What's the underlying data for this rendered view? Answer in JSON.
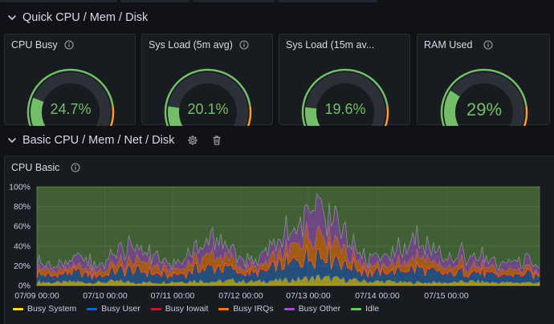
{
  "dashboard": {
    "rows": [
      {
        "title": "Quick CPU / Mem / Disk"
      },
      {
        "title": "Basic CPU / Mem / Net / Disk"
      }
    ],
    "gauges": [
      {
        "title": "CPU Busy",
        "value_text": "24.7%",
        "value": 24.7
      },
      {
        "title": "Sys Load (5m avg)",
        "value_text": "20.1%",
        "value": 20.1
      },
      {
        "title": "Sys Load (15m av...",
        "value_text": "19.6%",
        "value": 19.6
      },
      {
        "title": "RAM Used",
        "value_text": "29%",
        "value": 29
      }
    ],
    "icons": {
      "row_collapse": "chevron-down-icon",
      "info": "info-icon",
      "settings": "gear-icon",
      "delete": "trash-icon"
    },
    "colors": {
      "background": "#111217",
      "panel": "#181b1f",
      "gauge_green": "#73bf69",
      "threshold_orange": "#ff9830",
      "threshold_red": "#f2495c"
    }
  },
  "cpu_panel": {
    "title": "CPU Basic"
  },
  "chart_data": {
    "type": "area",
    "stacked": true,
    "ylim": [
      0,
      100
    ],
    "yticks": [
      "0%",
      "20%",
      "40%",
      "60%",
      "80%",
      "100%"
    ],
    "xticks": [
      "07/09 00:00",
      "07/10 00:00",
      "07/11 00:00",
      "07/12 00:00",
      "07/13 00:00",
      "07/14 00:00",
      "07/15 00:00"
    ],
    "x_range": [
      "07/09",
      "07/15 end"
    ],
    "grid": true,
    "legend_position": "bottom-left",
    "series": [
      {
        "name": "Busy System",
        "color": "#fade2a",
        "values": [
          4,
          3,
          3,
          4,
          3,
          3,
          4,
          4,
          3,
          3,
          3,
          4,
          4,
          5,
          4,
          4,
          5,
          4,
          4,
          5,
          5,
          6,
          7,
          8,
          7,
          6,
          5,
          4,
          4,
          4,
          3,
          3,
          3,
          3,
          3,
          4,
          4,
          3,
          3,
          3,
          3,
          3
        ]
      },
      {
        "name": "Busy User",
        "color": "#1f60c4",
        "values": [
          8,
          6,
          7,
          9,
          8,
          6,
          8,
          11,
          12,
          10,
          8,
          6,
          8,
          12,
          14,
          13,
          10,
          8,
          7,
          12,
          14,
          18,
          22,
          25,
          22,
          16,
          12,
          9,
          8,
          9,
          12,
          14,
          11,
          8,
          8,
          10,
          9,
          7,
          6,
          7,
          8,
          6
        ]
      },
      {
        "name": "Busy Iowait",
        "color": "#c4162a",
        "values": [
          1,
          1,
          1,
          1,
          1,
          1,
          1,
          1,
          1,
          1,
          1,
          1,
          1,
          1,
          1,
          1,
          1,
          1,
          1,
          1,
          1,
          1,
          1,
          1,
          1,
          1,
          1,
          1,
          1,
          1,
          1,
          1,
          1,
          1,
          1,
          1,
          1,
          1,
          1,
          1,
          1,
          1
        ]
      },
      {
        "name": "Busy IRQs",
        "color": "#ff780a",
        "values": [
          6,
          4,
          5,
          6,
          6,
          4,
          6,
          9,
          10,
          9,
          6,
          4,
          6,
          10,
          12,
          11,
          8,
          6,
          5,
          9,
          11,
          13,
          17,
          18,
          16,
          12,
          9,
          6,
          6,
          7,
          9,
          11,
          9,
          6,
          6,
          8,
          7,
          5,
          4,
          5,
          6,
          4
        ]
      },
      {
        "name": "Busy Other",
        "color": "#a352cc",
        "values": [
          8,
          5,
          6,
          9,
          8,
          5,
          9,
          14,
          15,
          12,
          8,
          5,
          8,
          14,
          16,
          15,
          11,
          8,
          6,
          12,
          15,
          18,
          26,
          30,
          24,
          17,
          12,
          8,
          8,
          10,
          14,
          17,
          13,
          9,
          8,
          12,
          10,
          7,
          6,
          7,
          9,
          6
        ]
      },
      {
        "name": "Idle",
        "color": "#73bf69",
        "values": [
          73,
          81,
          78,
          71,
          74,
          81,
          72,
          61,
          59,
          65,
          74,
          80,
          73,
          58,
          53,
          56,
          65,
          73,
          77,
          61,
          54,
          44,
          27,
          18,
          30,
          48,
          61,
          72,
          73,
          69,
          61,
          54,
          63,
          73,
          74,
          65,
          69,
          77,
          80,
          77,
          73,
          80
        ]
      }
    ]
  }
}
